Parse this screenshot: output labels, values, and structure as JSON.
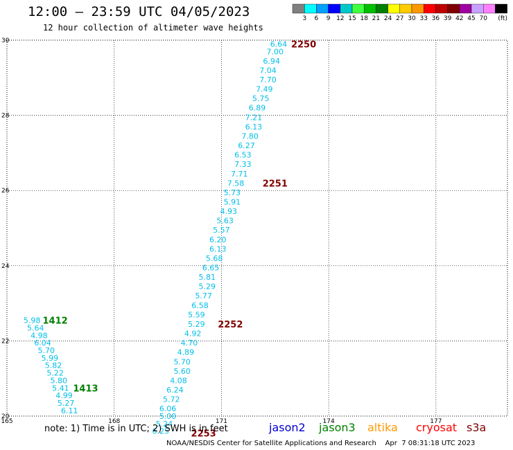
{
  "header": {
    "title": "12:00 – 23:59 UTC 04/05/2023",
    "subtitle": "12 hour collection of altimeter wave heights"
  },
  "legend": {
    "unit": "(ft)",
    "colors": [
      "#808080",
      "#00ffff",
      "#00a0ff",
      "#0000ff",
      "#00c8c8",
      "#40ff40",
      "#00c000",
      "#008000",
      "#ffff00",
      "#ffcc00",
      "#ff9900",
      "#ff0000",
      "#c00000",
      "#800000",
      "#a000a0",
      "#c8a0ff",
      "#ff80ff",
      "#000000"
    ],
    "labels": [
      "3",
      "6",
      "9",
      "12",
      "15",
      "18",
      "21",
      "24",
      "27",
      "30",
      "33",
      "36",
      "39",
      "42",
      "45",
      "70"
    ]
  },
  "chart_data": {
    "type": "scatter",
    "xlim": [
      165,
      179
    ],
    "ylim": [
      20,
      30
    ],
    "x_ticks": [
      "165",
      "168",
      "171",
      "174",
      "177"
    ],
    "y_ticks": [
      "20",
      "22",
      "24",
      "26",
      "28",
      "30"
    ],
    "grid": true,
    "series": [
      {
        "points": [
          {
            "x": 172.6,
            "y": 29.9,
            "v": "6.64"
          },
          {
            "x": 172.5,
            "y": 29.7,
            "v": "7.00"
          },
          {
            "x": 172.4,
            "y": 29.45,
            "v": "6.94"
          },
          {
            "x": 172.3,
            "y": 29.2,
            "v": "7.04"
          },
          {
            "x": 172.3,
            "y": 28.95,
            "v": "7.70"
          },
          {
            "x": 172.2,
            "y": 28.7,
            "v": "7.49"
          },
          {
            "x": 172.1,
            "y": 28.45,
            "v": "5.75"
          },
          {
            "x": 172.0,
            "y": 28.2,
            "v": "6.89"
          },
          {
            "x": 171.9,
            "y": 27.95,
            "v": "7.21"
          },
          {
            "x": 171.9,
            "y": 27.7,
            "v": "6.13"
          },
          {
            "x": 171.8,
            "y": 27.45,
            "v": "7.80"
          },
          {
            "x": 171.7,
            "y": 27.2,
            "v": "6.27"
          },
          {
            "x": 171.6,
            "y": 26.95,
            "v": "6.53"
          },
          {
            "x": 171.6,
            "y": 26.7,
            "v": "7.33"
          },
          {
            "x": 171.5,
            "y": 26.45,
            "v": "7.71"
          },
          {
            "x": 171.4,
            "y": 26.2,
            "v": "7.58"
          },
          {
            "x": 171.3,
            "y": 25.95,
            "v": "5.73"
          },
          {
            "x": 171.3,
            "y": 25.7,
            "v": "5.91"
          },
          {
            "x": 171.2,
            "y": 25.45,
            "v": "4.93"
          },
          {
            "x": 171.1,
            "y": 25.2,
            "v": "5.63"
          },
          {
            "x": 171.0,
            "y": 24.95,
            "v": "5.57"
          },
          {
            "x": 170.9,
            "y": 24.7,
            "v": "6.20"
          },
          {
            "x": 170.9,
            "y": 24.45,
            "v": "6.13"
          },
          {
            "x": 170.8,
            "y": 24.2,
            "v": "5.68"
          },
          {
            "x": 170.7,
            "y": 23.95,
            "v": "6.65"
          },
          {
            "x": 170.6,
            "y": 23.7,
            "v": "5.81"
          },
          {
            "x": 170.6,
            "y": 23.45,
            "v": "5.29"
          },
          {
            "x": 170.5,
            "y": 23.2,
            "v": "5.77"
          },
          {
            "x": 170.4,
            "y": 22.95,
            "v": "6.58"
          },
          {
            "x": 170.3,
            "y": 22.7,
            "v": "5.59"
          },
          {
            "x": 170.3,
            "y": 22.45,
            "v": "5.29"
          },
          {
            "x": 170.2,
            "y": 22.2,
            "v": "4.92"
          },
          {
            "x": 170.1,
            "y": 21.95,
            "v": "4.70"
          },
          {
            "x": 170.0,
            "y": 21.7,
            "v": "4.89"
          },
          {
            "x": 169.9,
            "y": 21.45,
            "v": "5.70"
          },
          {
            "x": 169.9,
            "y": 21.2,
            "v": "5.60"
          },
          {
            "x": 169.8,
            "y": 20.95,
            "v": "4.08"
          },
          {
            "x": 169.7,
            "y": 20.7,
            "v": "6.24"
          },
          {
            "x": 169.6,
            "y": 20.45,
            "v": "5.72"
          },
          {
            "x": 169.5,
            "y": 20.2,
            "v": "6.06"
          },
          {
            "x": 169.5,
            "y": 20.0,
            "v": "5.00"
          },
          {
            "x": 169.4,
            "y": 19.8,
            "v": "5.24"
          },
          {
            "x": 169.3,
            "y": 19.6,
            "v": "6.25"
          }
        ]
      },
      {
        "points": [
          {
            "x": 165.7,
            "y": 22.55,
            "v": "5.98"
          },
          {
            "x": 165.8,
            "y": 22.35,
            "v": "5.64"
          },
          {
            "x": 165.9,
            "y": 22.15,
            "v": "4.98"
          },
          {
            "x": 166.0,
            "y": 21.95,
            "v": "6.04"
          },
          {
            "x": 166.1,
            "y": 21.75,
            "v": "5.70"
          },
          {
            "x": 166.2,
            "y": 21.55,
            "v": "5.99"
          },
          {
            "x": 166.3,
            "y": 21.35,
            "v": "5.82"
          },
          {
            "x": 166.35,
            "y": 21.15,
            "v": "5.22"
          },
          {
            "x": 166.45,
            "y": 20.95,
            "v": "5.80"
          },
          {
            "x": 166.5,
            "y": 20.75,
            "v": "5.41"
          },
          {
            "x": 166.6,
            "y": 20.55,
            "v": "4.99"
          },
          {
            "x": 166.65,
            "y": 20.35,
            "v": "5.27"
          },
          {
            "x": 166.75,
            "y": 20.15,
            "v": "6.11"
          }
        ]
      }
    ],
    "pass_labels": [
      {
        "text": "2250",
        "x": 173.3,
        "y": 29.9,
        "color": "#800000"
      },
      {
        "text": "2251",
        "x": 172.5,
        "y": 26.2,
        "color": "#800000"
      },
      {
        "text": "2252",
        "x": 171.25,
        "y": 22.45,
        "color": "#800000"
      },
      {
        "text": "2253",
        "x": 170.5,
        "y": 19.55,
        "color": "#800000"
      },
      {
        "text": "1412",
        "x": 166.35,
        "y": 22.55,
        "color": "#008000"
      },
      {
        "text": "1413",
        "x": 167.2,
        "y": 20.75,
        "color": "#008000"
      }
    ]
  },
  "footer": {
    "note": "note: 1) Time is in UTC; 2) SWH is in feet",
    "satellites": [
      {
        "name": "jason2",
        "color": "#0000cc"
      },
      {
        "name": "jason3",
        "color": "#008000"
      },
      {
        "name": "altika",
        "color": "#ff9900"
      },
      {
        "name": "cryosat",
        "color": "#ff0000"
      },
      {
        "name": "s3a",
        "color": "#800000"
      }
    ],
    "credit": "NOAA/NESDIS Center for Satellite Applications and Research    Apr  7 08:31:18 UTC 2023"
  }
}
